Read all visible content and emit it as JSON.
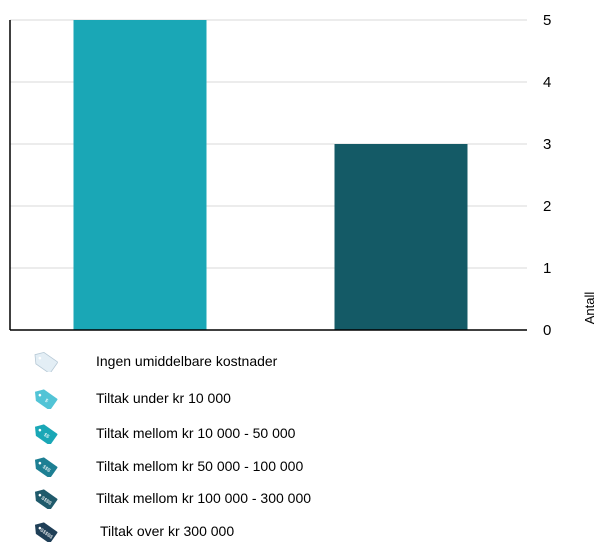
{
  "chart_data": {
    "type": "bar",
    "categories": [
      "",
      ""
    ],
    "values": [
      5,
      3
    ],
    "bar_colors": [
      "#1aa7b6",
      "#145a66"
    ],
    "ylabel": "Antall",
    "ylim": [
      0,
      5
    ],
    "yticks": [
      "0",
      "1",
      "2",
      "3",
      "4",
      "5"
    ],
    "grid": true,
    "axis_side": "right"
  },
  "legend": {
    "items": [
      {
        "label": "Ingen umiddelbare kostnader",
        "icon": "price-tag-icon",
        "color": "#e3eef5",
        "tag_text": ""
      },
      {
        "label": "Tiltak under kr 10 000",
        "icon": "price-tag-icon",
        "color": "#52c4d6",
        "tag_text": "$"
      },
      {
        "label": "Tiltak mellom kr 10 000 - 50 000",
        "icon": "price-tag-icon",
        "color": "#1aa7b6",
        "tag_text": "$$"
      },
      {
        "label": "Tiltak mellom kr 50 000 - 100 000",
        "icon": "price-tag-icon",
        "color": "#1d7f93",
        "tag_text": "$$$"
      },
      {
        "label": "Tiltak mellom kr 100 000 - 300 000",
        "icon": "price-tag-icon",
        "color": "#1f5a6b",
        "tag_text": "$$$$"
      },
      {
        "label": "Tiltak over kr  300 000",
        "icon": "price-tag-icon",
        "color": "#1f3f57",
        "tag_text": "$$$$$"
      }
    ]
  }
}
